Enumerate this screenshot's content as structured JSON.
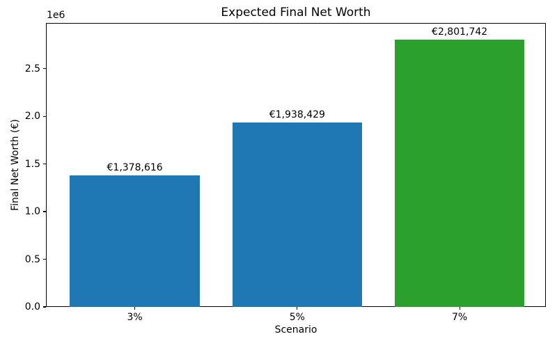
{
  "chart_data": {
    "type": "bar",
    "title": "Expected Final Net Worth",
    "xlabel": "Scenario",
    "ylabel": "Final Net Worth (€)",
    "categories": [
      "3%",
      "5%",
      "7%"
    ],
    "values": [
      1378616,
      1938429,
      2801742
    ],
    "value_labels": [
      "€1,378,616",
      "€1,938,429",
      "€2,801,742"
    ],
    "bar_colors": [
      "#1f77b4",
      "#1f77b4",
      "#2ca02c"
    ],
    "yticks": [
      0,
      500000,
      1000000,
      1500000,
      2000000,
      2500000
    ],
    "ytick_labels": [
      "0.0",
      "0.5",
      "1.0",
      "1.5",
      "2.0",
      "2.5"
    ],
    "offset_label": "1e6",
    "ylim": [
      0,
      2980000
    ],
    "grid": false,
    "legend": null
  }
}
